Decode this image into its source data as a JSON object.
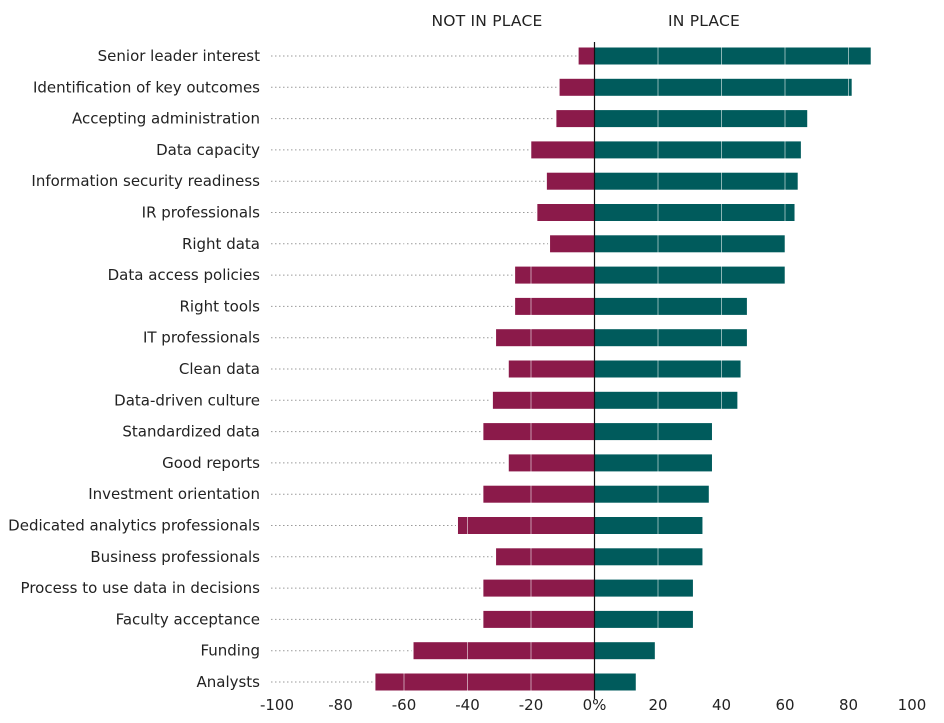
{
  "chart_data": {
    "type": "bar",
    "orientation": "horizontal",
    "layout": "diverging",
    "headers": {
      "negative": "NOT IN PLACE",
      "positive": "IN PLACE"
    },
    "categories": [
      "Senior leader interest",
      "Identification of key outcomes",
      "Accepting administration",
      "Data capacity",
      "Information security readiness",
      "IR professionals",
      "Right data",
      "Data access policies",
      "Right tools",
      "IT professionals",
      "Clean data",
      "Data-driven culture",
      "Standardized data",
      "Good reports",
      "Investment orientation",
      "Dedicated analytics professionals",
      "Business professionals",
      "Process to use data in decisions",
      "Faculty acceptance",
      "Funding",
      "Analysts"
    ],
    "series": [
      {
        "values": [
          -5,
          -11,
          -12,
          -20,
          -15,
          -18,
          -14,
          -25,
          -25,
          -31,
          -27,
          -32,
          -35,
          -27,
          -35,
          -43,
          -31,
          -35,
          -35,
          -57,
          -69
        ]
      },
      {
        "values": [
          87,
          81,
          67,
          65,
          64,
          63,
          60,
          60,
          48,
          48,
          46,
          45,
          37,
          37,
          36,
          34,
          34,
          31,
          31,
          19,
          13
        ]
      }
    ],
    "colors": {
      "negative": "#8b1a4a",
      "positive": "#005b5c"
    },
    "xlim": [
      -100,
      100
    ],
    "xticks": [
      -100,
      -80,
      -60,
      -40,
      -20,
      0,
      20,
      40,
      60,
      80,
      100
    ],
    "xtick_labels": [
      "-100",
      "-80",
      "-60",
      "-40",
      "-20",
      "0%",
      "20",
      "40",
      "60",
      "80",
      "100"
    ],
    "xlabel": "",
    "ylabel": "",
    "grid": true,
    "legend": "none"
  }
}
